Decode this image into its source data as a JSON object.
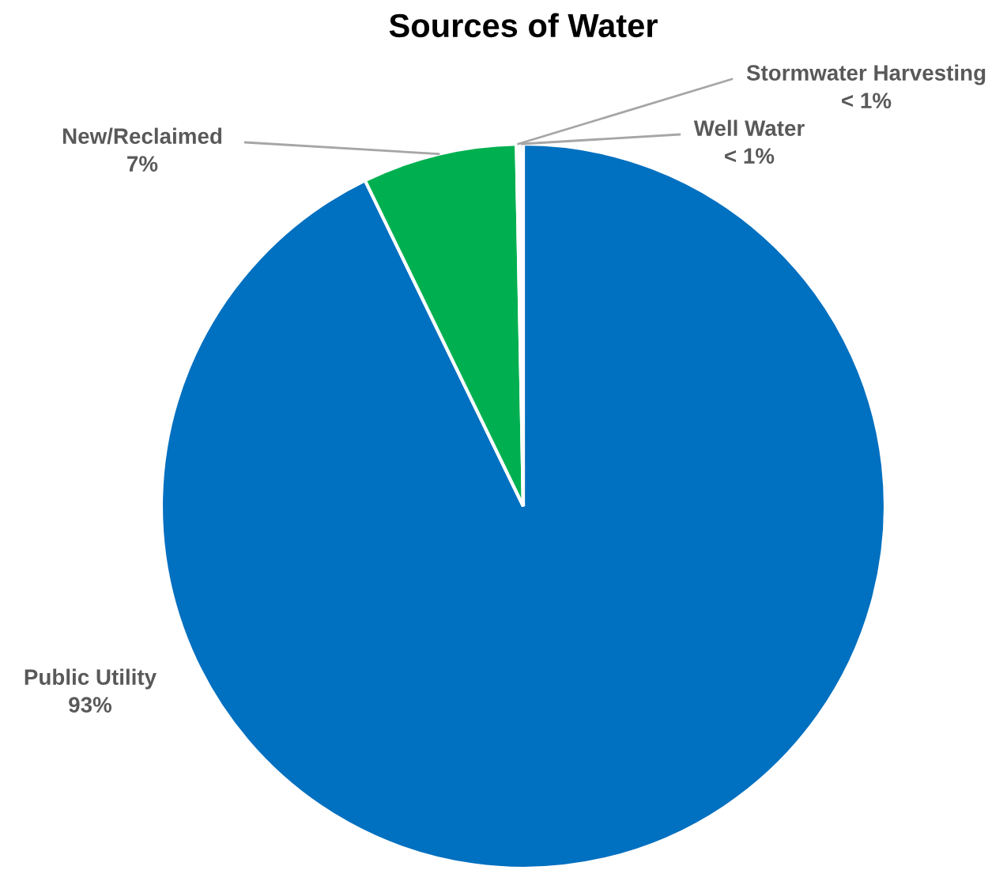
{
  "chart_data": {
    "type": "pie",
    "title": "Sources of Water",
    "categories": [
      "Public Utility",
      "New/Reclaimed",
      "Stormwater Harvesting",
      "Well Water"
    ],
    "values": [
      92.8,
      6.9,
      0.15,
      0.15
    ],
    "colors": [
      "#0070c0",
      "#00b050",
      "#00b050",
      "#a5a5a5"
    ],
    "value_labels": [
      "93%",
      "7%",
      "< 1%",
      "< 1%"
    ],
    "legend": false
  }
}
